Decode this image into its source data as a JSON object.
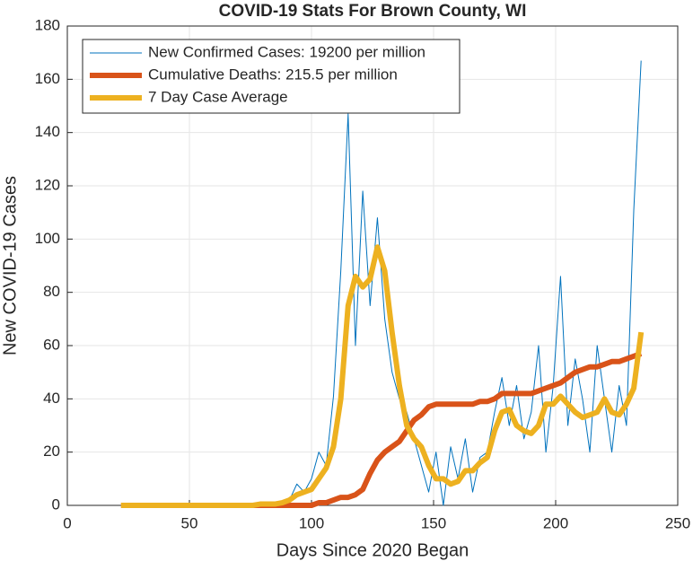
{
  "chart_data": {
    "type": "line",
    "title": "COVID-19 Stats For Brown County, WI",
    "x_label": "Days Since 2020 Began",
    "y_label": "New COVID-19 Cases",
    "xlim": [
      0,
      250
    ],
    "xticks": [
      0,
      50,
      100,
      150,
      200,
      250
    ],
    "ylim": [
      0,
      180
    ],
    "yticks": [
      0,
      20,
      40,
      60,
      80,
      100,
      120,
      140,
      160,
      180
    ],
    "grid": true,
    "legend": "upper left",
    "x": [
      22,
      25,
      28,
      31,
      34,
      37,
      40,
      43,
      46,
      49,
      52,
      55,
      58,
      61,
      64,
      67,
      70,
      73,
      76,
      79,
      82,
      85,
      88,
      91,
      94,
      97,
      100,
      103,
      106,
      109,
      112,
      115,
      118,
      121,
      124,
      127,
      130,
      133,
      136,
      139,
      142,
      145,
      148,
      151,
      154,
      157,
      160,
      163,
      166,
      169,
      172,
      175,
      178,
      181,
      184,
      187,
      190,
      193,
      196,
      199,
      202,
      205,
      208,
      211,
      214,
      217,
      220,
      223,
      226,
      229,
      232,
      235
    ],
    "series": [
      {
        "name": "New Confirmed Cases: 19200 per million",
        "color": "#0072BD",
        "values": [
          0,
          0,
          0,
          0,
          0,
          0,
          0,
          0,
          0,
          0,
          0,
          0,
          0,
          0,
          0,
          0,
          0,
          0,
          0,
          0,
          0,
          1,
          0,
          2,
          8,
          5,
          10,
          20,
          15,
          41,
          88,
          147,
          60,
          118,
          75,
          108,
          70,
          50,
          40,
          35,
          25,
          15,
          5,
          20,
          0,
          22,
          10,
          25,
          5,
          18,
          20,
          35,
          48,
          30,
          45,
          25,
          35,
          60,
          20,
          45,
          86,
          30,
          55,
          40,
          20,
          60,
          40,
          20,
          45,
          30,
          111,
          167
        ]
      },
      {
        "name": "Cumulative Deaths: 215.5 per million",
        "color": "#D95319",
        "values": [
          0,
          0,
          0,
          0,
          0,
          0,
          0,
          0,
          0,
          0,
          0,
          0,
          0,
          0,
          0,
          0,
          0,
          0,
          0,
          0,
          0,
          0,
          0,
          0,
          0,
          0,
          0,
          1,
          1,
          2,
          3,
          3,
          4,
          6,
          12,
          17,
          20,
          22,
          24,
          28,
          32,
          34,
          37,
          38,
          38,
          38,
          38,
          38,
          38,
          39,
          39,
          40,
          42,
          42,
          42,
          42,
          42,
          43,
          44,
          45,
          46,
          48,
          50,
          51,
          52,
          52,
          53,
          54,
          54,
          55,
          56,
          57
        ]
      },
      {
        "name": "7 Day Case Average",
        "color": "#EDB120",
        "values": [
          0,
          0,
          0,
          0,
          0,
          0,
          0,
          0,
          0,
          0,
          0,
          0,
          0,
          0,
          0,
          0,
          0,
          0,
          0,
          0.5,
          0.5,
          0.5,
          1,
          2,
          4,
          5,
          6,
          10,
          14,
          22,
          40,
          75,
          86,
          82,
          85,
          97,
          88,
          65,
          45,
          30,
          25,
          22,
          15,
          10,
          10,
          8,
          9,
          13,
          13,
          16,
          18,
          28,
          35,
          36,
          30,
          28,
          27,
          30,
          38,
          38,
          41,
          38,
          35,
          33,
          34,
          35,
          40,
          35,
          34,
          38,
          44,
          65
        ]
      }
    ]
  }
}
